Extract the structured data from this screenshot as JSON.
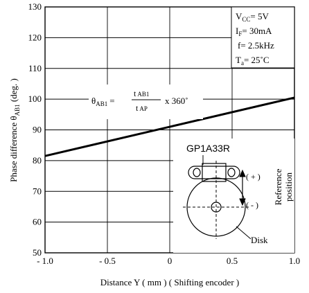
{
  "chart_data": {
    "type": "line",
    "xlabel": "Distance Y ( mm ) ( Shifting encoder )",
    "ylabel": "Phase difference θAB1 (deg.)",
    "ylabel_parts": {
      "pre": "Phase difference θ",
      "sub": "AB1",
      "post": " (deg. )"
    },
    "xlim": [
      -1.0,
      1.0
    ],
    "ylim": [
      50,
      130
    ],
    "grid": true,
    "x_ticks": [
      -1.0,
      -0.5,
      0,
      0.5,
      1.0
    ],
    "x_tick_labels": [
      "- 1.0",
      "- 0.5",
      "0",
      "0.5",
      "1.0"
    ],
    "y_ticks": [
      50,
      60,
      70,
      80,
      90,
      100,
      110,
      120,
      130
    ],
    "y_tick_labels": [
      "50",
      "60",
      "70",
      "80",
      "90",
      "100",
      "110",
      "120",
      "130"
    ],
    "series": [
      {
        "x": [
          -1.0,
          0,
          1.0
        ],
        "y": [
          81.5,
          91,
          100.5
        ]
      }
    ],
    "conditions": [
      {
        "pre": "V",
        "sub": "CC",
        "post": "= 5V"
      },
      {
        "pre": "I",
        "sub": "F",
        "post": "= 30mA"
      },
      {
        "pre": "f= 2.5kHz",
        "sub": "",
        "post": ""
      },
      {
        "pre": "T",
        "sub": "a",
        "post": "= 25˚C"
      }
    ],
    "formula": {
      "lhs": "θ",
      "lhs_sub": "AB1",
      "eq": "=",
      "num": "t",
      "num_sub": "AB1",
      "den": "t",
      "den_sub": "AP",
      "tail": "x  360˚"
    },
    "inset": {
      "part": "GP1A33R",
      "plus": "( + )",
      "minus": "( - )",
      "reference_line1": "Reference",
      "reference_line2": "position",
      "disk": "Disk"
    }
  }
}
